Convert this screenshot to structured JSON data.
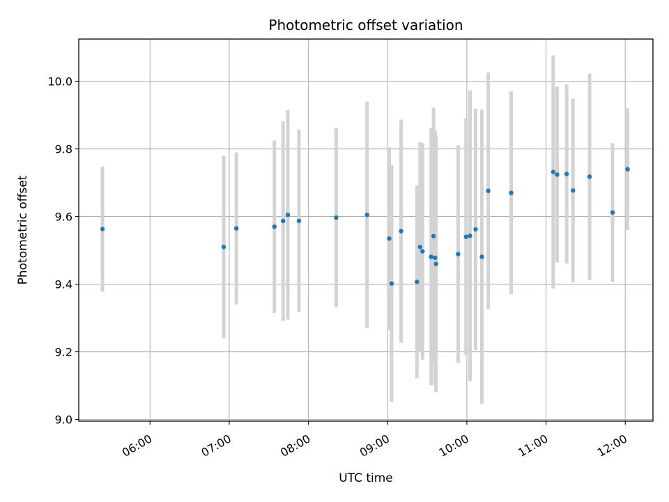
{
  "chart_data": {
    "type": "scatter",
    "title": "Photometric offset variation",
    "xlabel": "UTC time",
    "ylabel": "Photometric offset",
    "x_unit": "UTC time (hours)",
    "xlim": [
      5.1,
      12.35
    ],
    "ylim": [
      8.995,
      10.125
    ],
    "x_ticks": [
      {
        "value": 6,
        "label": "06:00"
      },
      {
        "value": 7,
        "label": "07:00"
      },
      {
        "value": 8,
        "label": "08:00"
      },
      {
        "value": 9,
        "label": "09:00"
      },
      {
        "value": 10,
        "label": "10:00"
      },
      {
        "value": 11,
        "label": "11:00"
      },
      {
        "value": 12,
        "label": "12:00"
      }
    ],
    "y_ticks": [
      {
        "value": 9.0,
        "label": "9.0"
      },
      {
        "value": 9.2,
        "label": "9.2"
      },
      {
        "value": 9.4,
        "label": "9.4"
      },
      {
        "value": 9.6,
        "label": "9.6"
      },
      {
        "value": 9.8,
        "label": "9.8"
      },
      {
        "value": 10.0,
        "label": "10.0"
      }
    ],
    "grid": true,
    "point_color": "#1f77b4",
    "errorbar_color": "#d3d3d3",
    "points": [
      {
        "x": 5.4,
        "y": 9.563,
        "err": 0.185
      },
      {
        "x": 6.93,
        "y": 9.51,
        "err": 0.27
      },
      {
        "x": 7.09,
        "y": 9.565,
        "err": 0.225
      },
      {
        "x": 7.57,
        "y": 9.57,
        "err": 0.255
      },
      {
        "x": 7.68,
        "y": 9.587,
        "err": 0.295
      },
      {
        "x": 7.74,
        "y": 9.605,
        "err": 0.31
      },
      {
        "x": 7.88,
        "y": 9.587,
        "err": 0.27
      },
      {
        "x": 8.35,
        "y": 9.597,
        "err": 0.265
      },
      {
        "x": 8.74,
        "y": 9.605,
        "err": 0.335
      },
      {
        "x": 9.02,
        "y": 9.535,
        "err": 0.27
      },
      {
        "x": 9.05,
        "y": 9.402,
        "err": 0.35
      },
      {
        "x": 9.17,
        "y": 9.557,
        "err": 0.33
      },
      {
        "x": 9.37,
        "y": 9.407,
        "err": 0.285
      },
      {
        "x": 9.41,
        "y": 9.51,
        "err": 0.31
      },
      {
        "x": 9.44,
        "y": 9.497,
        "err": 0.32
      },
      {
        "x": 9.55,
        "y": 9.481,
        "err": 0.38
      },
      {
        "x": 9.58,
        "y": 9.542,
        "err": 0.38
      },
      {
        "x": 9.6,
        "y": 9.478,
        "err": 0.375
      },
      {
        "x": 9.61,
        "y": 9.46,
        "err": 0.38
      },
      {
        "x": 9.89,
        "y": 9.489,
        "err": 0.322
      },
      {
        "x": 9.99,
        "y": 9.54,
        "err": 0.35
      },
      {
        "x": 10.04,
        "y": 9.543,
        "err": 0.43
      },
      {
        "x": 10.11,
        "y": 9.562,
        "err": 0.357
      },
      {
        "x": 10.19,
        "y": 9.481,
        "err": 0.435
      },
      {
        "x": 10.27,
        "y": 9.676,
        "err": 0.35
      },
      {
        "x": 10.56,
        "y": 9.67,
        "err": 0.3
      },
      {
        "x": 11.09,
        "y": 9.732,
        "err": 0.345
      },
      {
        "x": 11.14,
        "y": 9.724,
        "err": 0.26
      },
      {
        "x": 11.26,
        "y": 9.726,
        "err": 0.265
      },
      {
        "x": 11.34,
        "y": 9.677,
        "err": 0.272
      },
      {
        "x": 11.55,
        "y": 9.718,
        "err": 0.305
      },
      {
        "x": 11.84,
        "y": 9.612,
        "err": 0.205
      },
      {
        "x": 12.03,
        "y": 9.74,
        "err": 0.18
      }
    ]
  }
}
